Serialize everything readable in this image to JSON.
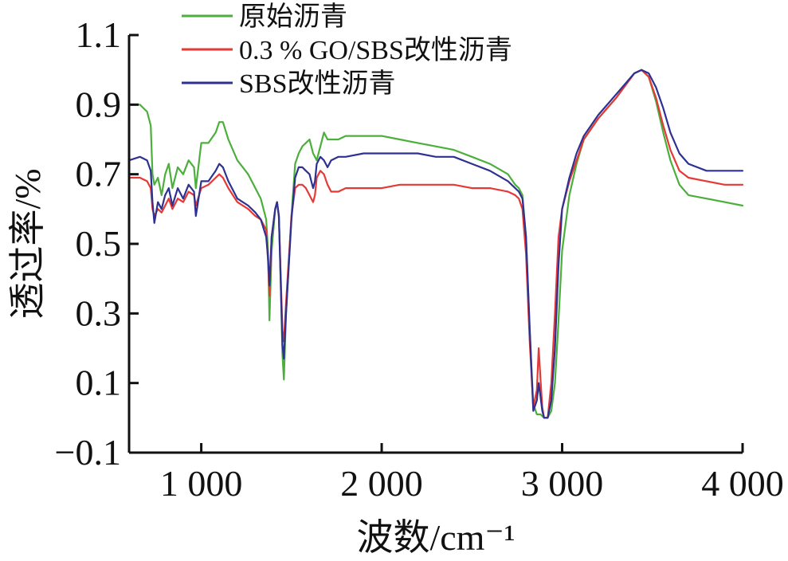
{
  "chart_data": {
    "type": "line",
    "title": "",
    "xlabel": "波数/cm⁻¹",
    "ylabel": "透过率/%",
    "xlim": [
      600,
      4000
    ],
    "ylim": [
      -0.1,
      1.1
    ],
    "xticks": [
      1000,
      2000,
      3000,
      4000
    ],
    "xtick_labels": [
      "1 000",
      "2 000",
      "3 000",
      "4 000"
    ],
    "yticks": [
      -0.1,
      0.1,
      0.3,
      0.5,
      0.7,
      0.9,
      1.1
    ],
    "ytick_labels": [
      "−0.1",
      "0.1",
      "0.3",
      "0.5",
      "0.7",
      "0.9",
      "1.1"
    ],
    "legend_position": "top-left",
    "grid": false,
    "series": [
      {
        "name": "原始沥青",
        "color": "#4caf3c",
        "x": [
          600,
          660,
          700,
          720,
          730,
          740,
          760,
          780,
          800,
          820,
          840,
          870,
          900,
          930,
          960,
          970,
          1000,
          1040,
          1080,
          1100,
          1120,
          1150,
          1200,
          1260,
          1300,
          1330,
          1360,
          1370,
          1378,
          1390,
          1410,
          1420,
          1430,
          1440,
          1450,
          1458,
          1470,
          1500,
          1520,
          1540,
          1560,
          1580,
          1600,
          1610,
          1620,
          1630,
          1640,
          1660,
          1680,
          1700,
          1720,
          1760,
          1800,
          1900,
          2000,
          2100,
          2200,
          2300,
          2400,
          2500,
          2600,
          2700,
          2740,
          2760,
          2780,
          2800,
          2820,
          2840,
          2860,
          2880,
          2900,
          2920,
          2940,
          2960,
          2980,
          3000,
          3040,
          3080,
          3120,
          3200,
          3300,
          3400,
          3440,
          3480,
          3520,
          3560,
          3600,
          3650,
          3700,
          3800,
          3900,
          4000
        ],
        "values": [
          0.9,
          0.9,
          0.88,
          0.84,
          0.7,
          0.67,
          0.69,
          0.64,
          0.7,
          0.73,
          0.66,
          0.72,
          0.7,
          0.74,
          0.72,
          0.66,
          0.79,
          0.79,
          0.82,
          0.85,
          0.85,
          0.8,
          0.74,
          0.7,
          0.66,
          0.63,
          0.57,
          0.48,
          0.28,
          0.48,
          0.6,
          0.62,
          0.58,
          0.4,
          0.18,
          0.11,
          0.3,
          0.58,
          0.73,
          0.76,
          0.78,
          0.79,
          0.8,
          0.78,
          0.76,
          0.75,
          0.74,
          0.78,
          0.82,
          0.8,
          0.8,
          0.8,
          0.81,
          0.81,
          0.81,
          0.8,
          0.79,
          0.78,
          0.77,
          0.75,
          0.73,
          0.7,
          0.67,
          0.66,
          0.64,
          0.52,
          0.25,
          0.04,
          0.01,
          0.01,
          0.0,
          0.0,
          0.02,
          0.1,
          0.28,
          0.48,
          0.64,
          0.73,
          0.8,
          0.86,
          0.92,
          0.99,
          1.0,
          0.98,
          0.91,
          0.82,
          0.74,
          0.67,
          0.64,
          0.63,
          0.62,
          0.61
        ]
      },
      {
        "name": "0.3 % GO/SBS改性沥青",
        "color": "#e53935",
        "x": [
          600,
          660,
          700,
          720,
          730,
          740,
          760,
          780,
          800,
          820,
          840,
          870,
          900,
          930,
          960,
          970,
          1000,
          1040,
          1080,
          1100,
          1120,
          1150,
          1200,
          1260,
          1300,
          1330,
          1360,
          1370,
          1378,
          1390,
          1410,
          1420,
          1430,
          1440,
          1450,
          1458,
          1470,
          1500,
          1520,
          1540,
          1560,
          1580,
          1600,
          1610,
          1620,
          1630,
          1640,
          1660,
          1680,
          1700,
          1720,
          1760,
          1800,
          1900,
          2000,
          2100,
          2200,
          2300,
          2400,
          2500,
          2600,
          2700,
          2740,
          2760,
          2780,
          2800,
          2820,
          2840,
          2860,
          2870,
          2880,
          2890,
          2900,
          2920,
          2940,
          2960,
          2980,
          3000,
          3040,
          3080,
          3120,
          3200,
          3300,
          3400,
          3440,
          3480,
          3520,
          3560,
          3600,
          3650,
          3700,
          3800,
          3900,
          4000
        ],
        "values": [
          0.69,
          0.69,
          0.68,
          0.66,
          0.6,
          0.58,
          0.6,
          0.59,
          0.61,
          0.63,
          0.6,
          0.63,
          0.62,
          0.65,
          0.64,
          0.61,
          0.66,
          0.67,
          0.69,
          0.7,
          0.69,
          0.66,
          0.62,
          0.6,
          0.58,
          0.57,
          0.54,
          0.45,
          0.35,
          0.52,
          0.6,
          0.62,
          0.58,
          0.42,
          0.25,
          0.22,
          0.33,
          0.58,
          0.66,
          0.67,
          0.67,
          0.66,
          0.64,
          0.63,
          0.62,
          0.64,
          0.69,
          0.71,
          0.7,
          0.67,
          0.65,
          0.65,
          0.66,
          0.66,
          0.66,
          0.67,
          0.67,
          0.67,
          0.67,
          0.66,
          0.66,
          0.65,
          0.64,
          0.63,
          0.6,
          0.47,
          0.22,
          0.03,
          0.08,
          0.2,
          0.11,
          0.03,
          0.0,
          0.0,
          0.1,
          0.3,
          0.52,
          0.6,
          0.68,
          0.74,
          0.8,
          0.86,
          0.92,
          0.99,
          1.0,
          0.98,
          0.92,
          0.84,
          0.77,
          0.71,
          0.69,
          0.68,
          0.67,
          0.67
        ]
      },
      {
        "name": "SBS改性沥青",
        "color": "#2e3192",
        "x": [
          600,
          660,
          700,
          720,
          730,
          740,
          760,
          780,
          800,
          820,
          840,
          870,
          900,
          930,
          960,
          970,
          1000,
          1040,
          1080,
          1100,
          1120,
          1150,
          1200,
          1260,
          1300,
          1330,
          1360,
          1370,
          1378,
          1390,
          1410,
          1420,
          1430,
          1440,
          1450,
          1458,
          1470,
          1500,
          1520,
          1540,
          1560,
          1580,
          1600,
          1610,
          1620,
          1630,
          1640,
          1660,
          1680,
          1700,
          1720,
          1760,
          1800,
          1900,
          2000,
          2100,
          2200,
          2300,
          2400,
          2500,
          2600,
          2700,
          2740,
          2760,
          2780,
          2800,
          2820,
          2840,
          2860,
          2870,
          2880,
          2890,
          2900,
          2920,
          2940,
          2960,
          2980,
          3000,
          3040,
          3080,
          3120,
          3200,
          3300,
          3400,
          3440,
          3480,
          3520,
          3560,
          3600,
          3650,
          3700,
          3800,
          3900,
          4000
        ],
        "values": [
          0.74,
          0.75,
          0.74,
          0.71,
          0.62,
          0.56,
          0.62,
          0.6,
          0.64,
          0.66,
          0.61,
          0.66,
          0.63,
          0.67,
          0.65,
          0.58,
          0.68,
          0.68,
          0.71,
          0.73,
          0.72,
          0.68,
          0.63,
          0.61,
          0.59,
          0.57,
          0.52,
          0.46,
          0.38,
          0.52,
          0.6,
          0.62,
          0.58,
          0.4,
          0.21,
          0.17,
          0.3,
          0.57,
          0.69,
          0.72,
          0.72,
          0.71,
          0.7,
          0.68,
          0.66,
          0.68,
          0.73,
          0.75,
          0.74,
          0.72,
          0.74,
          0.75,
          0.75,
          0.76,
          0.76,
          0.76,
          0.76,
          0.75,
          0.75,
          0.73,
          0.71,
          0.68,
          0.66,
          0.65,
          0.63,
          0.52,
          0.26,
          0.02,
          0.05,
          0.1,
          0.06,
          0.02,
          0.0,
          0.0,
          0.05,
          0.2,
          0.44,
          0.6,
          0.69,
          0.76,
          0.81,
          0.87,
          0.93,
          0.99,
          1.0,
          0.99,
          0.95,
          0.89,
          0.82,
          0.76,
          0.73,
          0.71,
          0.71,
          0.71
        ]
      }
    ]
  }
}
